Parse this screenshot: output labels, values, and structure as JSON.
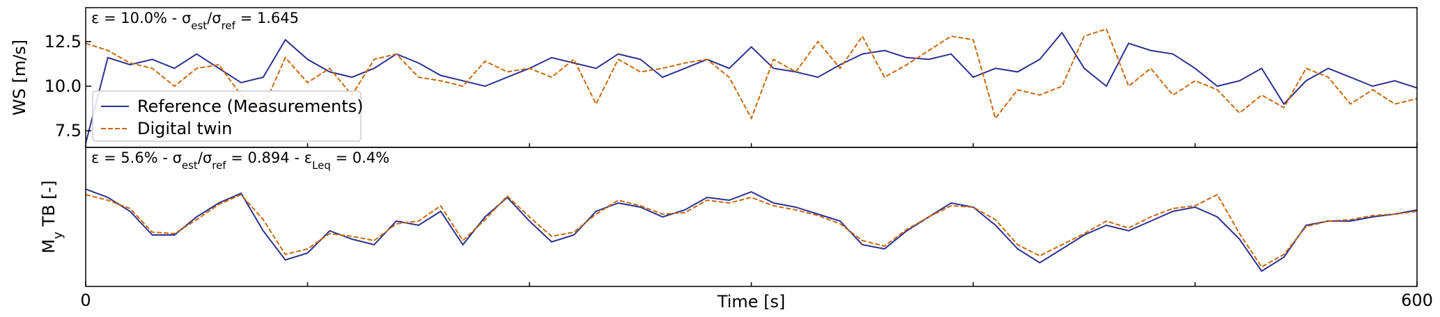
{
  "chart_data": [
    {
      "type": "line",
      "annotation": [
        "ε = 10.0% - σ",
        "est",
        "/σ",
        "ref",
        " = 1.645"
      ],
      "ylabel": [
        "WS [m/s]"
      ],
      "x": [
        0,
        10,
        20,
        30,
        40,
        50,
        60,
        70,
        80,
        90,
        100,
        110,
        120,
        130,
        140,
        150,
        160,
        170,
        180,
        190,
        200,
        210,
        220,
        230,
        240,
        250,
        260,
        270,
        280,
        290,
        300,
        310,
        320,
        330,
        340,
        350,
        360,
        370,
        380,
        390,
        400,
        410,
        420,
        430,
        440,
        450,
        460,
        470,
        480,
        490,
        500,
        510,
        520,
        530,
        540,
        550,
        560,
        570,
        580,
        590,
        600
      ],
      "xlim": [
        0,
        600
      ],
      "xticks_minor": [
        0,
        100,
        200,
        300,
        400,
        500,
        600
      ],
      "ylim": [
        6.57,
        14.4
      ],
      "yticks": [
        7.5,
        {
          "value": 10,
          "label": "10.0"
        },
        12.5
      ],
      "legend": "center left",
      "series": [
        {
          "name": "Reference (Measurements)",
          "color": "#2b2f8f",
          "dashed": false,
          "values": [
            6.8,
            11.6,
            11.2,
            11.5,
            11.0,
            11.8,
            11.0,
            10.2,
            10.5,
            12.6,
            11.5,
            10.8,
            10.5,
            11.0,
            11.8,
            11.3,
            10.6,
            10.3,
            10.0,
            10.5,
            11.0,
            11.6,
            11.3,
            11.0,
            11.8,
            11.5,
            10.5,
            11.0,
            11.5,
            11.0,
            12.2,
            11.0,
            10.8,
            10.5,
            11.2,
            11.8,
            12.0,
            11.6,
            11.5,
            11.8,
            10.5,
            11.0,
            10.8,
            11.5,
            13.0,
            11.0,
            10.0,
            12.4,
            12.0,
            11.8,
            11.0,
            10.0,
            10.3,
            11.0,
            9.0,
            10.3,
            11.0,
            10.5,
            10.0,
            10.3,
            9.9
          ]
        },
        {
          "name": "Digital twin",
          "color": "#c8680a",
          "dashed": true,
          "values": [
            12.4,
            12.0,
            11.3,
            11.0,
            10.0,
            11.0,
            11.2,
            9.5,
            8.8,
            11.6,
            10.2,
            11.0,
            9.5,
            11.5,
            11.8,
            10.5,
            10.3,
            10.0,
            11.4,
            10.8,
            11.0,
            10.5,
            11.5,
            9.0,
            11.5,
            10.8,
            11.0,
            11.3,
            11.5,
            10.5,
            8.2,
            11.5,
            10.8,
            12.5,
            11.0,
            12.8,
            10.5,
            11.2,
            12.0,
            12.8,
            12.6,
            8.2,
            9.8,
            9.5,
            10.0,
            12.8,
            13.2,
            10.0,
            11.0,
            9.5,
            10.3,
            9.8,
            8.5,
            9.5,
            8.8,
            11.0,
            10.5,
            9.0,
            9.8,
            9.0,
            9.3
          ]
        }
      ]
    },
    {
      "type": "line",
      "annotation": [
        "ε = 5.6% - σ",
        "est",
        "/σ",
        "ref",
        " = 0.894 - ε",
        "Leq",
        " = 0.4%"
      ],
      "ylabel": [
        "M",
        "y",
        " TB [-]"
      ],
      "xlabel": "Time [s]",
      "x": [
        0,
        10,
        20,
        30,
        40,
        50,
        60,
        70,
        80,
        90,
        100,
        110,
        120,
        130,
        140,
        150,
        160,
        170,
        180,
        190,
        200,
        210,
        220,
        230,
        240,
        250,
        260,
        270,
        280,
        290,
        300,
        310,
        320,
        330,
        340,
        350,
        360,
        370,
        380,
        390,
        400,
        410,
        420,
        430,
        440,
        450,
        460,
        470,
        480,
        490,
        500,
        510,
        520,
        530,
        540,
        550,
        560,
        570,
        580,
        590,
        600
      ],
      "xlim": [
        0,
        600
      ],
      "xticks": [
        0,
        600
      ],
      "xticks_minor": [
        100,
        200,
        300,
        400,
        500
      ],
      "ylim": [
        0,
        1
      ],
      "series": [
        {
          "name": "Reference (Measurements)",
          "color": "#2b2f8f",
          "dashed": false,
          "values": [
            0.7,
            0.64,
            0.54,
            0.37,
            0.37,
            0.5,
            0.6,
            0.67,
            0.4,
            0.19,
            0.24,
            0.4,
            0.34,
            0.3,
            0.47,
            0.44,
            0.54,
            0.3,
            0.5,
            0.64,
            0.47,
            0.32,
            0.37,
            0.54,
            0.6,
            0.57,
            0.5,
            0.55,
            0.64,
            0.62,
            0.68,
            0.6,
            0.57,
            0.52,
            0.47,
            0.3,
            0.27,
            0.4,
            0.5,
            0.6,
            0.57,
            0.44,
            0.27,
            0.17,
            0.27,
            0.37,
            0.44,
            0.4,
            0.47,
            0.54,
            0.57,
            0.5,
            0.34,
            0.11,
            0.21,
            0.44,
            0.47,
            0.47,
            0.5,
            0.52,
            0.55
          ]
        },
        {
          "name": "Digital twin",
          "color": "#c8680a",
          "dashed": true,
          "values": [
            0.66,
            0.62,
            0.56,
            0.39,
            0.38,
            0.48,
            0.59,
            0.66,
            0.48,
            0.23,
            0.27,
            0.38,
            0.36,
            0.33,
            0.45,
            0.47,
            0.58,
            0.33,
            0.48,
            0.65,
            0.5,
            0.36,
            0.39,
            0.52,
            0.62,
            0.58,
            0.52,
            0.53,
            0.62,
            0.6,
            0.64,
            0.58,
            0.55,
            0.51,
            0.45,
            0.33,
            0.29,
            0.41,
            0.5,
            0.58,
            0.57,
            0.48,
            0.3,
            0.22,
            0.3,
            0.38,
            0.47,
            0.42,
            0.5,
            0.56,
            0.58,
            0.66,
            0.38,
            0.14,
            0.23,
            0.43,
            0.47,
            0.48,
            0.51,
            0.52,
            0.54
          ]
        }
      ]
    }
  ]
}
